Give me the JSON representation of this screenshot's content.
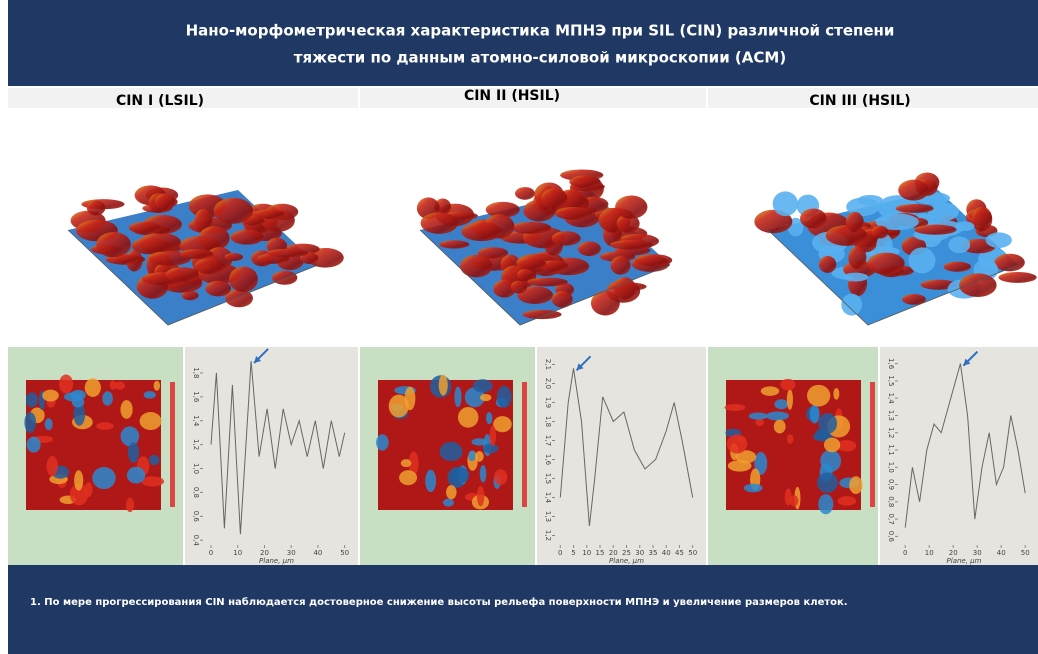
{
  "header": {
    "title_line1": "Нано-морфометрическая характеристика МПНЭ при SIL (CIN) различной степени",
    "title_line2": "тяжести по данным атомно-силовой микроскопии (АСМ)"
  },
  "columns": [
    {
      "heading": "CIN I (LSIL)",
      "profile": {
        "type": "line",
        "x_label": "Plane, μm",
        "color": "#666666",
        "x": [
          0,
          2,
          5,
          8,
          11,
          15,
          18,
          21,
          24,
          27,
          30,
          33,
          36,
          39,
          42,
          45,
          48,
          50
        ],
        "values": [
          1.2,
          1.8,
          0.5,
          1.7,
          0.45,
          1.9,
          1.1,
          1.5,
          1.0,
          1.5,
          1.2,
          1.4,
          1.1,
          1.4,
          1.0,
          1.4,
          1.1,
          1.3
        ],
        "xlim": [
          -3,
          52
        ],
        "ylim": [
          0.36,
          1.95
        ],
        "xticks": [
          0,
          10,
          20,
          30,
          40,
          50
        ],
        "yticks": [
          {
            "value": 0.4,
            "label": "0,4"
          },
          {
            "value": 0.6,
            "label": "0,6"
          },
          {
            "value": 0.8,
            "label": "0,8"
          },
          {
            "value": 1.0,
            "label": "1,0"
          },
          {
            "value": 1.2,
            "label": "1,2"
          },
          {
            "value": 1.4,
            "label": "1,4"
          },
          {
            "value": 1.6,
            "label": "1,6"
          },
          {
            "value": 1.8,
            "label": "1,8"
          }
        ]
      }
    },
    {
      "heading": "CIN II (HSIL)",
      "profile": {
        "type": "line",
        "x_label": "Plane, μm",
        "color": "#666666",
        "x": [
          0,
          3,
          5,
          8,
          11,
          13,
          16,
          20,
          24,
          28,
          32,
          36,
          40,
          43,
          46,
          50
        ],
        "values": [
          1.4,
          1.9,
          2.08,
          1.8,
          1.25,
          1.5,
          1.93,
          1.8,
          1.85,
          1.65,
          1.55,
          1.6,
          1.75,
          1.9,
          1.7,
          1.4
        ],
        "xlim": [
          -2,
          52
        ],
        "ylim": [
          1.15,
          2.15
        ],
        "xticks": [
          0,
          5,
          10,
          15,
          20,
          25,
          30,
          35,
          40,
          45,
          50
        ],
        "yticks": [
          {
            "value": 1.2,
            "label": "1,2"
          },
          {
            "value": 1.3,
            "label": "1,3"
          },
          {
            "value": 1.4,
            "label": "1,4"
          },
          {
            "value": 1.5,
            "label": "1,5"
          },
          {
            "value": 1.6,
            "label": "1,6"
          },
          {
            "value": 1.7,
            "label": "1,7"
          },
          {
            "value": 1.8,
            "label": "1,8"
          },
          {
            "value": 1.9,
            "label": "1,9"
          },
          {
            "value": 2.0,
            "label": "2,0"
          },
          {
            "value": 2.1,
            "label": "2,1"
          }
        ]
      }
    },
    {
      "heading": "CIN III (HSIL)",
      "profile": {
        "type": "line",
        "x_label": "Plane, μm",
        "color": "#666666",
        "x": [
          0,
          3,
          6,
          9,
          12,
          15,
          18,
          21,
          23,
          26,
          29,
          32,
          35,
          38,
          41,
          44,
          47,
          50
        ],
        "values": [
          0.65,
          1.0,
          0.8,
          1.1,
          1.25,
          1.2,
          1.35,
          1.5,
          1.6,
          1.3,
          0.7,
          1.0,
          1.2,
          0.9,
          1.0,
          1.3,
          1.1,
          0.85
        ],
        "xlim": [
          -3,
          52
        ],
        "ylim": [
          0.55,
          1.65
        ],
        "xticks": [
          0,
          10,
          20,
          30,
          40,
          50
        ],
        "yticks": [
          {
            "value": 0.6,
            "label": "0,6"
          },
          {
            "value": 0.7,
            "label": "0,7"
          },
          {
            "value": 0.8,
            "label": "0,8"
          },
          {
            "value": 0.9,
            "label": "0,9"
          },
          {
            "value": 1.0,
            "label": "1,0"
          },
          {
            "value": 1.1,
            "label": "1,1"
          },
          {
            "value": 1.2,
            "label": "1,2"
          },
          {
            "value": 1.3,
            "label": "1,3"
          },
          {
            "value": 1.4,
            "label": "1,4"
          },
          {
            "value": 1.5,
            "label": "1,5"
          },
          {
            "value": 1.6,
            "label": "1,6"
          }
        ]
      }
    }
  ],
  "footer": {
    "note": "1. По мере прогрессирования  CIN наблюдается достоверное снижение высоты рельефа поверхности МПНЭ и увеличение размеров клеток."
  }
}
